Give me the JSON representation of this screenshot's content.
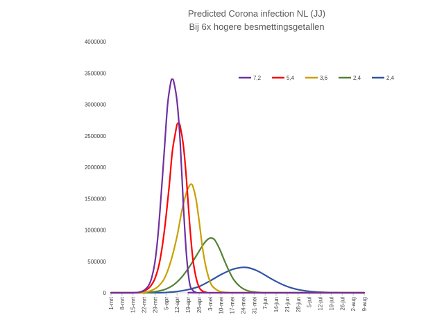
{
  "chart_data": {
    "type": "line",
    "title": "Predicted Corona infection NL (JJ)",
    "subtitle": "Bij 6x hogere besmettingsgetallen",
    "xlabel": "",
    "ylabel": "",
    "ylim": [
      0,
      4000000
    ],
    "yticks": [
      "0",
      "500000",
      "1000000",
      "1500000",
      "2000000",
      "2500000",
      "3000000",
      "3500000",
      "4000000"
    ],
    "x_tick_labels": [
      "1-mrt",
      "8-mrt",
      "15-mrt",
      "22-mrt",
      "29-mrt",
      "5-apr",
      "12-apr",
      "19-apr",
      "26-apr",
      "3-mei",
      "10-mei",
      "17-mei",
      "24-mei",
      "31-mei",
      "7-jun",
      "14-jun",
      "21-jun",
      "28-jun",
      "5-jul",
      "12-jul",
      "19-jul",
      "26-jul",
      "2-aug",
      "9-aug"
    ],
    "x_start": "1-mrt",
    "x_step_days": 7,
    "grid": false,
    "legend_position": "top-right",
    "series": [
      {
        "name": "7,2",
        "color": "#7030A0",
        "points": [
          [
            0,
            0
          ],
          [
            14,
            0
          ],
          [
            18,
            10000
          ],
          [
            21,
            40000
          ],
          [
            24,
            120000
          ],
          [
            26,
            250000
          ],
          [
            28,
            500000
          ],
          [
            30,
            950000
          ],
          [
            32,
            1600000
          ],
          [
            34,
            2300000
          ],
          [
            36,
            3000000
          ],
          [
            38,
            3350000
          ],
          [
            39,
            3400000
          ],
          [
            40,
            3350000
          ],
          [
            42,
            3050000
          ],
          [
            44,
            2400000
          ],
          [
            46,
            1400000
          ],
          [
            48,
            600000
          ],
          [
            50,
            150000
          ],
          [
            52,
            40000
          ],
          [
            54,
            8000
          ],
          [
            58,
            0
          ],
          [
            161,
            0
          ]
        ]
      },
      {
        "name": "5,4",
        "color": "#FF0000",
        "points": [
          [
            0,
            0
          ],
          [
            14,
            0
          ],
          [
            18,
            8000
          ],
          [
            22,
            40000
          ],
          [
            25,
            100000
          ],
          [
            28,
            230000
          ],
          [
            31,
            500000
          ],
          [
            34,
            1000000
          ],
          [
            37,
            1700000
          ],
          [
            39,
            2250000
          ],
          [
            41,
            2550000
          ],
          [
            42,
            2680000
          ],
          [
            43,
            2700000
          ],
          [
            44,
            2650000
          ],
          [
            46,
            2350000
          ],
          [
            48,
            1800000
          ],
          [
            50,
            1100000
          ],
          [
            52,
            550000
          ],
          [
            54,
            250000
          ],
          [
            56,
            90000
          ],
          [
            58,
            30000
          ],
          [
            61,
            5000
          ],
          [
            65,
            0
          ],
          [
            161,
            0
          ]
        ]
      },
      {
        "name": "3,6",
        "color": "#C9A000",
        "points": [
          [
            0,
            0
          ],
          [
            18,
            0
          ],
          [
            22,
            10000
          ],
          [
            26,
            40000
          ],
          [
            30,
            100000
          ],
          [
            34,
            230000
          ],
          [
            38,
            500000
          ],
          [
            42,
            900000
          ],
          [
            45,
            1300000
          ],
          [
            48,
            1600000
          ],
          [
            50,
            1710000
          ],
          [
            51,
            1730000
          ],
          [
            52,
            1700000
          ],
          [
            54,
            1500000
          ],
          [
            56,
            1150000
          ],
          [
            58,
            750000
          ],
          [
            60,
            450000
          ],
          [
            62,
            250000
          ],
          [
            64,
            120000
          ],
          [
            67,
            50000
          ],
          [
            70,
            15000
          ],
          [
            75,
            3000
          ],
          [
            80,
            0
          ],
          [
            161,
            0
          ]
        ]
      },
      {
        "name": "2,4",
        "color": "#548235",
        "points": [
          [
            0,
            0
          ],
          [
            21,
            0
          ],
          [
            25,
            10000
          ],
          [
            30,
            25000
          ],
          [
            35,
            60000
          ],
          [
            40,
            130000
          ],
          [
            45,
            250000
          ],
          [
            50,
            420000
          ],
          [
            55,
            620000
          ],
          [
            59,
            780000
          ],
          [
            62,
            860000
          ],
          [
            64,
            870000
          ],
          [
            66,
            840000
          ],
          [
            69,
            700000
          ],
          [
            72,
            520000
          ],
          [
            75,
            350000
          ],
          [
            78,
            210000
          ],
          [
            82,
            100000
          ],
          [
            86,
            40000
          ],
          [
            90,
            15000
          ],
          [
            95,
            4000
          ],
          [
            100,
            0
          ],
          [
            161,
            0
          ]
        ]
      },
      {
        "name": "2,4",
        "color": "#2E55A5",
        "points": [
          [
            0,
            0
          ],
          [
            28,
            0
          ],
          [
            35,
            5000
          ],
          [
            42,
            20000
          ],
          [
            49,
            50000
          ],
          [
            56,
            100000
          ],
          [
            63,
            190000
          ],
          [
            70,
            290000
          ],
          [
            77,
            370000
          ],
          [
            82,
            400000
          ],
          [
            85,
            405000
          ],
          [
            88,
            395000
          ],
          [
            92,
            360000
          ],
          [
            96,
            310000
          ],
          [
            100,
            250000
          ],
          [
            105,
            180000
          ],
          [
            110,
            120000
          ],
          [
            115,
            75000
          ],
          [
            120,
            45000
          ],
          [
            127,
            20000
          ],
          [
            134,
            8000
          ],
          [
            141,
            3000
          ],
          [
            150,
            0
          ],
          [
            161,
            0
          ]
        ]
      }
    ]
  }
}
